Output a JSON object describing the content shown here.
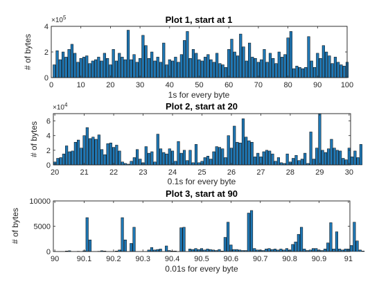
{
  "chart_data": [
    {
      "type": "bar",
      "title": "Plot 1, start at 1",
      "xlabel": "1s for every byte",
      "ylabel": "# of bytes",
      "exponent_label": "×10",
      "exponent_power": "5",
      "xlim": [
        0,
        100
      ],
      "ylim": [
        0,
        4
      ],
      "xticks": [
        0,
        10,
        20,
        30,
        40,
        50,
        60,
        70,
        80,
        90,
        100
      ],
      "yticks": [
        0,
        2,
        4
      ],
      "bar_width": 0.85,
      "bar_color": "#1f77b4",
      "x_start": 1,
      "x_step": 1,
      "values": [
        1.0,
        2.1,
        1.4,
        2.0,
        1.6,
        2.2,
        2.6,
        1.9,
        1.2,
        1.5,
        1.6,
        1.7,
        1.1,
        1.3,
        1.4,
        1.6,
        1.3,
        1.9,
        1.5,
        1.0,
        2.2,
        1.3,
        1.9,
        1.6,
        1.4,
        3.7,
        1.4,
        1.8,
        1.2,
        1.5,
        3.3,
        2.5,
        1.5,
        2.0,
        1.3,
        1.6,
        1.2,
        2.7,
        1.0,
        1.4,
        1.3,
        1.6,
        1.2,
        1.8,
        2.9,
        3.6,
        1.5,
        2.2,
        1.9,
        1.4,
        1.3,
        1.6,
        1.8,
        1.4,
        1.2,
        1.9,
        1.1,
        1.0,
        0.8,
        2.2,
        3.0,
        2.0,
        1.7,
        3.4,
        2.4,
        1.3,
        2.7,
        1.6,
        1.5,
        1.2,
        1.4,
        2.2,
        1.2,
        1.9,
        1.5,
        1.1,
        2.0,
        1.6,
        1.8,
        3.1,
        3.6,
        0.7,
        0.9,
        0.8,
        0.7,
        0.8,
        3.2,
        1.3,
        0.8,
        1.9,
        1.5,
        2.5,
        2.0,
        1.7,
        1.1,
        1.6,
        1.2,
        1.0,
        0.9,
        1.2
      ]
    },
    {
      "type": "bar",
      "title": "Plot 2, start at 20",
      "xlabel": "0.1s for every byte",
      "ylabel": "# of bytes",
      "exponent_label": "×10",
      "exponent_power": "4",
      "xlim": [
        19.95,
        30.05
      ],
      "ylim": [
        0,
        7
      ],
      "xticks": [
        20,
        21,
        22,
        23,
        24,
        25,
        26,
        27,
        28,
        29,
        30
      ],
      "yticks": [
        0,
        2,
        4,
        6
      ],
      "bar_width": 0.085,
      "bar_color": "#1f77b4",
      "x_start": 20.0,
      "x_step": 0.1,
      "values": [
        0.4,
        0.9,
        1.0,
        1.5,
        2.6,
        1.8,
        1.9,
        3.1,
        3.4,
        2.3,
        4.0,
        5.1,
        3.6,
        3.8,
        3.5,
        4.1,
        2.1,
        1.4,
        2.9,
        3.0,
        2.4,
        2.7,
        1.9,
        0.4,
        0.2,
        0.1,
        0.5,
        1.0,
        2.1,
        0.8,
        0.3,
        2.5,
        1.6,
        1.8,
        0.4,
        4.2,
        2.2,
        1.7,
        1.5,
        2.2,
        1.9,
        0.5,
        3.2,
        1.6,
        2.0,
        0.6,
        2.0,
        0.3,
        2.8,
        0.3,
        0.5,
        1.0,
        1.2,
        0.8,
        1.8,
        2.5,
        2.4,
        2.2,
        1.0,
        4.0,
        2.3,
        5.3,
        3.1,
        3.0,
        6.3,
        3.8,
        3.3,
        3.1,
        1.1,
        1.6,
        1.1,
        1.8,
        2.0,
        1.9,
        1.5,
        0.5,
        1.0,
        0.3,
        0.2,
        1.5,
        0.4,
        0.9,
        1.3,
        0.6,
        0.8,
        1.6,
        0.2,
        4.5,
        0.8,
        2.3,
        7.0,
        2.0,
        1.7,
        2.2,
        3.5,
        2.3,
        2.0,
        1.9,
        0.9,
        0.7,
        2.3,
        1.1,
        1.9,
        1.0,
        2.8
      ]
    },
    {
      "type": "bar",
      "title": "Plot 3, start at 90",
      "xlabel": "0.01s for every byte",
      "ylabel": "# of bytes",
      "xlim": [
        89.995,
        91.005
      ],
      "ylim": [
        0,
        10000
      ],
      "xticks": [
        90,
        90.1,
        90.2,
        90.3,
        90.4,
        90.5,
        90.6,
        90.7,
        90.8,
        90.9,
        91
      ],
      "yticks": [
        0,
        5000,
        10000
      ],
      "bar_width": 0.0085,
      "bar_color": "#1f77b4",
      "x_start": 90.0,
      "x_step": 0.01,
      "values": [
        0,
        0,
        0,
        0,
        100,
        150,
        0,
        0,
        50,
        0,
        150,
        6700,
        2300,
        0,
        0,
        50,
        150,
        100,
        0,
        0,
        0,
        100,
        300,
        6700,
        2300,
        0,
        1600,
        4800,
        0,
        0,
        0,
        0,
        300,
        800,
        300,
        400,
        500,
        0,
        1100,
        200,
        100,
        100,
        0,
        4700,
        4800,
        0,
        500,
        400,
        600,
        400,
        600,
        300,
        500,
        400,
        300,
        200,
        400,
        100,
        2800,
        5800,
        1300,
        400,
        400,
        300,
        200,
        200,
        7600,
        8100,
        600,
        300,
        300,
        200,
        500,
        600,
        400,
        500,
        300,
        500,
        300,
        600,
        300,
        1400,
        1900,
        3400,
        4800,
        500,
        200,
        300,
        600,
        600,
        300,
        200,
        500,
        1700,
        5700,
        500,
        3900,
        500,
        300,
        500,
        500,
        1200,
        5800,
        2100,
        300,
        100
      ]
    }
  ]
}
